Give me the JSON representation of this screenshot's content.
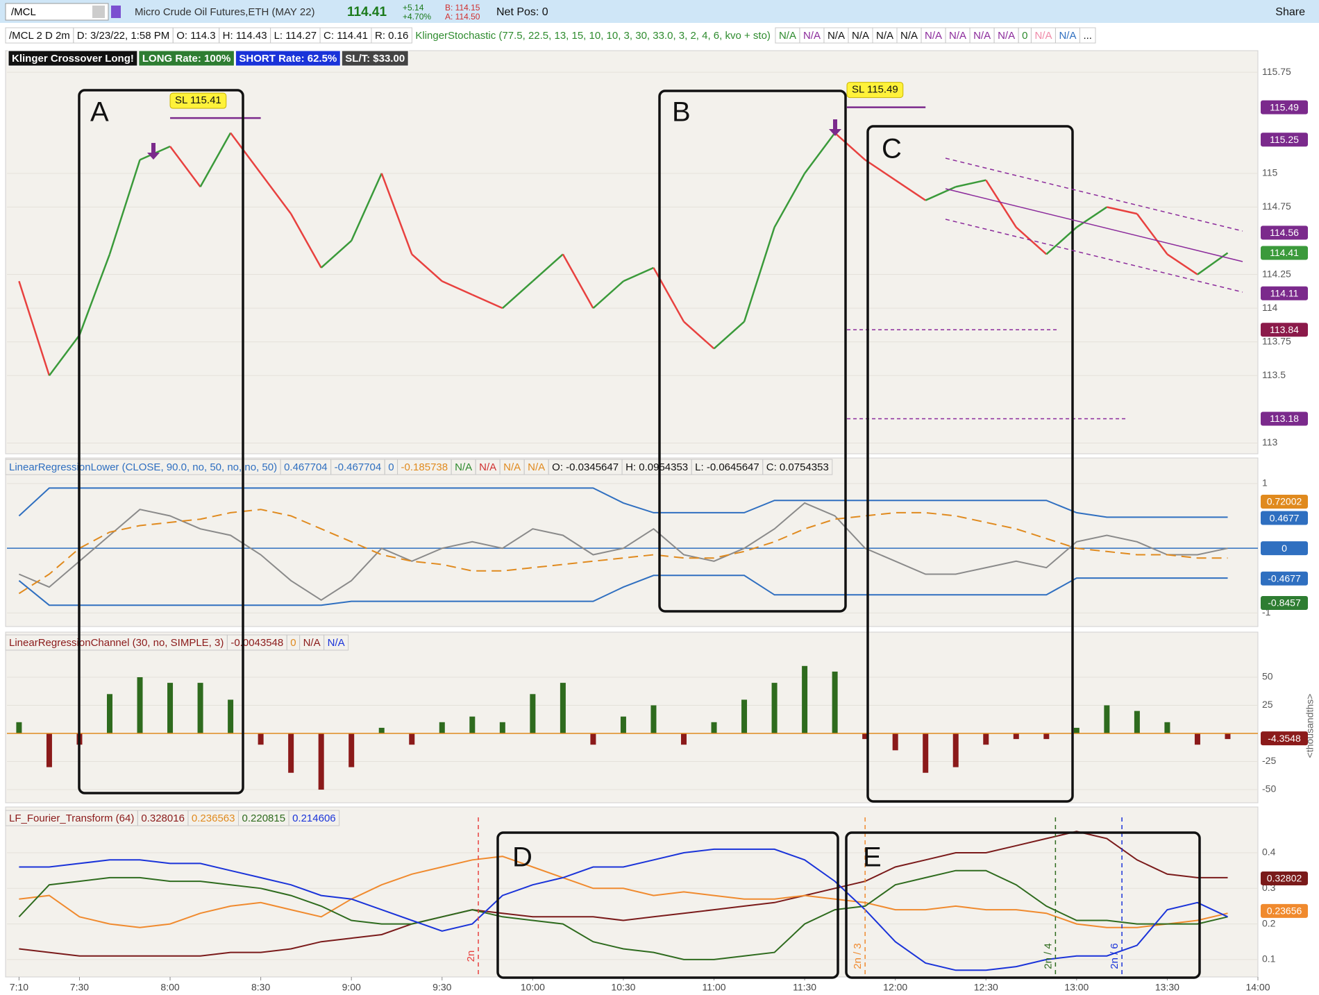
{
  "toolbar": {
    "symbol": "/MCL",
    "description": "Micro Crude Oil Futures,ETH (MAY 22)",
    "last": "114.41",
    "change": "+5.14",
    "change_pct": "+4.70%",
    "bid": "B: 114.15",
    "ask": "A: 114.50",
    "position": "Net Pos: 0",
    "share": "Share"
  },
  "info_row": {
    "items": [
      "/MCL 2 D 2m",
      "D: 3/23/22, 1:58 PM",
      "O: 114.3",
      "H: 114.43",
      "L: 114.27",
      "C: 114.41",
      "R: 0.16"
    ],
    "study": {
      "text": "KlingerStochastic (77.5, 22.5, 13, 15, 10, 10, 3, 30, 33.0, 3, 2, 4, 6, kvo + sto)",
      "color": "#2e8b2e"
    },
    "values": [
      {
        "text": "N/A",
        "color": "#2e8b2e"
      },
      {
        "text": "N/A",
        "color": "#8b2a9b"
      },
      {
        "text": "N/A",
        "color": "#111111"
      },
      {
        "text": "N/A",
        "color": "#111111"
      },
      {
        "text": "N/A",
        "color": "#111111"
      },
      {
        "text": "N/A",
        "color": "#111111"
      },
      {
        "text": "N/A",
        "color": "#8b2a9b"
      },
      {
        "text": "N/A",
        "color": "#8b2a9b"
      },
      {
        "text": "N/A",
        "color": "#8b2a9b"
      },
      {
        "text": "N/A",
        "color": "#8b2a9b"
      },
      {
        "text": "0",
        "color": "#2e8b2e"
      },
      {
        "text": "N/A",
        "color": "#f08aa8"
      },
      {
        "text": "N/A",
        "color": "#2f6fc0"
      },
      {
        "text": "...",
        "color": "#111111"
      }
    ]
  },
  "badges": [
    {
      "text": "Klinger Crossover Long!",
      "bg": "#111111"
    },
    {
      "text": "LONG Rate: 100%",
      "bg": "#2e7d32"
    },
    {
      "text": "SHORT Rate: 62.5%",
      "bg": "#1a33d9"
    },
    {
      "text": "SL/T: $33.00",
      "bg": "#444444"
    }
  ],
  "boxes": [
    "A",
    "B",
    "C",
    "D",
    "E"
  ],
  "x": [
    430,
    440,
    450,
    460,
    470,
    480,
    490,
    500,
    510,
    520,
    530,
    540,
    550,
    560,
    570,
    580,
    590,
    600,
    610,
    620,
    630,
    640,
    650,
    660,
    670,
    680,
    690,
    700,
    710,
    720,
    730,
    740,
    750,
    760,
    770,
    780,
    790,
    800,
    810,
    820,
    830
  ],
  "xlim": [
    426,
    840
  ],
  "xticks": [
    {
      "value": 430,
      "label": "7:10"
    },
    {
      "value": 450,
      "label": "7:30"
    },
    {
      "value": 480,
      "label": "8:00"
    },
    {
      "value": 510,
      "label": "8:30"
    },
    {
      "value": 540,
      "label": "9:00"
    },
    {
      "value": 570,
      "label": "9:30"
    },
    {
      "value": 600,
      "label": "10:00"
    },
    {
      "value": 630,
      "label": "10:30"
    },
    {
      "value": 660,
      "label": "11:00"
    },
    {
      "value": 690,
      "label": "11:30"
    },
    {
      "value": 720,
      "label": "12:00"
    },
    {
      "value": 750,
      "label": "12:30"
    },
    {
      "value": 780,
      "label": "13:00"
    },
    {
      "value": 810,
      "label": "13:30"
    },
    {
      "value": 840,
      "label": "14:00"
    }
  ],
  "panels": [
    {
      "type": "price",
      "ylim": [
        112.92,
        115.91
      ],
      "yticks": [
        115.75,
        115,
        114.75,
        114.25,
        114,
        113.75,
        113.5,
        113
      ],
      "series": [
        {
          "up_color": "#3a9a3a",
          "down_color": "#e8413f",
          "values": [
            114.2,
            113.5,
            113.8,
            114.4,
            115.1,
            115.2,
            114.9,
            115.3,
            115.0,
            114.7,
            114.3,
            114.5,
            115.0,
            114.4,
            114.2,
            114.1,
            114.0,
            114.2,
            114.4,
            114.0,
            114.2,
            114.3,
            113.9,
            113.7,
            113.9,
            114.6,
            115.0,
            115.3,
            115.1,
            114.95,
            114.8,
            114.9,
            114.95,
            114.6,
            114.4,
            114.6,
            114.75,
            114.7,
            114.4,
            114.25,
            114.41
          ]
        }
      ],
      "sl": [
        {
          "label": "SL 115.41",
          "value": 115.41,
          "from": 480,
          "to": 510
        },
        {
          "label": "SL 115.49",
          "value": 115.49,
          "from": 704,
          "to": 730
        }
      ],
      "tags": [
        {
          "value": 115.49,
          "color": "#7b2a8c"
        },
        {
          "value": 115.25,
          "color": "#7b2a8c"
        },
        {
          "value": 114.56,
          "color": "#7b2a8c"
        },
        {
          "value": 114.41,
          "color": "#3b9a3b"
        },
        {
          "value": 114.11,
          "color": "#7b2a8c"
        },
        {
          "value": 113.84,
          "color": "#8b1a4a"
        },
        {
          "value": 113.18,
          "color": "#7b2a8c"
        }
      ]
    },
    {
      "type": "oscillator",
      "ylim": [
        -1.21,
        1.16
      ],
      "yticks": [
        1,
        0,
        -1
      ],
      "header": [
        {
          "text": "LinearRegressionLower (CLOSE, 90.0, no, 50, no, no, 50)",
          "color": "#2f6fc0"
        },
        {
          "text": "0.467704",
          "color": "#2f6fc0"
        },
        {
          "text": "-0.467704",
          "color": "#2f6fc0"
        },
        {
          "text": "0",
          "color": "#2f6fc0"
        },
        {
          "text": "-0.185738",
          "color": "#e08a1e"
        },
        {
          "text": "N/A",
          "color": "#2e8b2e"
        },
        {
          "text": "N/A",
          "color": "#d03030"
        },
        {
          "text": "N/A",
          "color": "#e08a1e"
        },
        {
          "text": "N/A",
          "color": "#e08a1e"
        },
        {
          "text": "O: -0.0345647",
          "color": "#111111"
        },
        {
          "text": "H: 0.0954353",
          "color": "#111111"
        },
        {
          "text": "L: -0.0645647",
          "color": "#111111"
        },
        {
          "text": "C: 0.0754353",
          "color": "#111111"
        }
      ],
      "series": [
        {
          "color": "#8a8a8a",
          "values": [
            -0.4,
            -0.6,
            -0.2,
            0.2,
            0.6,
            0.5,
            0.3,
            0.2,
            -0.1,
            -0.5,
            -0.8,
            -0.5,
            0.0,
            -0.2,
            0.0,
            0.1,
            0.0,
            0.3,
            0.2,
            -0.1,
            0.0,
            0.3,
            -0.1,
            -0.2,
            0.0,
            0.3,
            0.7,
            0.5,
            0.0,
            -0.2,
            -0.4,
            -0.4,
            -0.3,
            -0.2,
            -0.3,
            0.1,
            0.2,
            0.1,
            -0.1,
            -0.1,
            0.0
          ]
        },
        {
          "color": "#2f6fc0",
          "values": [
            0.5,
            0.93,
            0.93,
            0.93,
            0.93,
            0.93,
            0.93,
            0.93,
            0.93,
            0.93,
            0.93,
            0.93,
            0.93,
            0.93,
            0.93,
            0.93,
            0.93,
            0.93,
            0.93,
            0.93,
            0.7,
            0.55,
            0.55,
            0.55,
            0.55,
            0.74,
            0.74,
            0.74,
            0.74,
            0.74,
            0.74,
            0.74,
            0.74,
            0.74,
            0.74,
            0.55,
            0.48,
            0.48,
            0.48,
            0.48,
            0.48
          ]
        },
        {
          "color": "#2f6fc0",
          "values": [
            -0.5,
            -0.88,
            -0.88,
            -0.88,
            -0.88,
            -0.88,
            -0.88,
            -0.88,
            -0.88,
            -0.88,
            -0.88,
            -0.82,
            -0.82,
            -0.82,
            -0.82,
            -0.82,
            -0.82,
            -0.82,
            -0.82,
            -0.82,
            -0.6,
            -0.42,
            -0.42,
            -0.42,
            -0.42,
            -0.72,
            -0.72,
            -0.72,
            -0.72,
            -0.72,
            -0.72,
            -0.72,
            -0.72,
            -0.72,
            -0.72,
            -0.46,
            -0.46,
            -0.46,
            -0.46,
            -0.46,
            -0.46
          ]
        },
        {
          "color": "#e08a1e",
          "dashed": true,
          "values": [
            -0.7,
            -0.4,
            0.0,
            0.25,
            0.35,
            0.4,
            0.45,
            0.55,
            0.6,
            0.5,
            0.3,
            0.1,
            -0.1,
            -0.2,
            -0.25,
            -0.35,
            -0.35,
            -0.3,
            -0.25,
            -0.2,
            -0.15,
            -0.1,
            -0.15,
            -0.15,
            -0.05,
            0.1,
            0.3,
            0.45,
            0.5,
            0.55,
            0.55,
            0.5,
            0.4,
            0.3,
            0.15,
            0.0,
            -0.05,
            -0.1,
            -0.1,
            -0.15,
            -0.15
          ]
        }
      ],
      "tags": [
        {
          "value": 0.72002,
          "color": "#e08a1e"
        },
        {
          "value": 0.4677,
          "color": "#2f6fc0"
        },
        {
          "value": 0,
          "color": "#2f6fc0"
        },
        {
          "value": -0.4677,
          "color": "#2f6fc0"
        },
        {
          "value": -0.8457,
          "color": "#2e7d32"
        }
      ]
    },
    {
      "type": "histogram",
      "ylim": [
        -61.7,
        75.3
      ],
      "yticks": [
        50,
        25,
        -25,
        -50
      ],
      "axis_label": "<thousandths>",
      "header": [
        {
          "text": "LinearRegressionChannel (30, no, SIMPLE, 3)",
          "color": "#8b1a1a"
        },
        {
          "text": "-0.0043548",
          "color": "#8b1a1a"
        },
        {
          "text": "0",
          "color": "#e08a1e"
        },
        {
          "text": "N/A",
          "color": "#8b1a1a"
        },
        {
          "text": "N/A",
          "color": "#1a33d9"
        }
      ],
      "series": [
        {
          "up_color": "#2e6b1e",
          "down_color": "#8b1a1a",
          "values": [
            10,
            -30,
            -10,
            35,
            50,
            45,
            45,
            30,
            -10,
            -35,
            -50,
            -30,
            5,
            -10,
            10,
            15,
            10,
            35,
            45,
            -10,
            15,
            25,
            -10,
            10,
            30,
            45,
            60,
            55,
            -5,
            -15,
            -35,
            -30,
            -10,
            -5,
            -5,
            5,
            25,
            20,
            10,
            -10,
            -5
          ]
        }
      ],
      "tags": [
        {
          "value": -4.3548,
          "color": "#8b1a1a"
        }
      ]
    },
    {
      "type": "lines",
      "ylim": [
        0.051,
        0.48
      ],
      "yticks": [
        0.4,
        0.3,
        0.2,
        0.1
      ],
      "header": [
        {
          "text": "LF_Fourier_Transform (64)",
          "color": "#8b1a1a"
        },
        {
          "text": "0.328016",
          "color": "#8b1a1a"
        },
        {
          "text": "0.236563",
          "color": "#e08a1e"
        },
        {
          "text": "0.220815",
          "color": "#2e6b1e"
        },
        {
          "text": "0.214606",
          "color": "#1a33d9"
        }
      ],
      "series": [
        {
          "color": "#7a1a1a",
          "values": [
            0.13,
            0.12,
            0.11,
            0.11,
            0.11,
            0.11,
            0.11,
            0.12,
            0.12,
            0.13,
            0.15,
            0.16,
            0.17,
            0.2,
            0.22,
            0.24,
            0.23,
            0.22,
            0.22,
            0.22,
            0.21,
            0.22,
            0.23,
            0.24,
            0.25,
            0.26,
            0.28,
            0.3,
            0.32,
            0.36,
            0.38,
            0.4,
            0.4,
            0.42,
            0.44,
            0.46,
            0.44,
            0.38,
            0.34,
            0.33,
            0.33
          ]
        },
        {
          "color": "#f08a2e",
          "values": [
            0.27,
            0.28,
            0.22,
            0.2,
            0.19,
            0.2,
            0.23,
            0.25,
            0.26,
            0.24,
            0.22,
            0.27,
            0.31,
            0.34,
            0.36,
            0.38,
            0.39,
            0.36,
            0.33,
            0.3,
            0.3,
            0.28,
            0.29,
            0.28,
            0.27,
            0.27,
            0.28,
            0.27,
            0.26,
            0.24,
            0.24,
            0.25,
            0.24,
            0.24,
            0.23,
            0.2,
            0.19,
            0.19,
            0.2,
            0.21,
            0.23
          ]
        },
        {
          "color": "#2e6b1e",
          "values": [
            0.22,
            0.31,
            0.32,
            0.33,
            0.33,
            0.32,
            0.32,
            0.31,
            0.3,
            0.28,
            0.25,
            0.21,
            0.2,
            0.2,
            0.22,
            0.24,
            0.22,
            0.21,
            0.2,
            0.15,
            0.13,
            0.12,
            0.1,
            0.1,
            0.11,
            0.12,
            0.2,
            0.24,
            0.25,
            0.31,
            0.33,
            0.35,
            0.35,
            0.31,
            0.25,
            0.21,
            0.21,
            0.2,
            0.2,
            0.2,
            0.22
          ]
        },
        {
          "color": "#1a33d9",
          "values": [
            0.36,
            0.36,
            0.37,
            0.38,
            0.38,
            0.37,
            0.37,
            0.35,
            0.33,
            0.31,
            0.28,
            0.27,
            0.24,
            0.21,
            0.18,
            0.2,
            0.28,
            0.31,
            0.33,
            0.36,
            0.36,
            0.38,
            0.4,
            0.41,
            0.41,
            0.41,
            0.38,
            0.32,
            0.24,
            0.15,
            0.09,
            0.07,
            0.07,
            0.08,
            0.1,
            0.11,
            0.11,
            0.14,
            0.24,
            0.26,
            0.22
          ]
        }
      ],
      "markers": [
        {
          "label": "2n",
          "x": 582,
          "color": "#e8413f"
        },
        {
          "label": "2n / 3",
          "x": 710,
          "color": "#f08a2e"
        },
        {
          "label": "2n / 4",
          "x": 773,
          "color": "#2e6b1e"
        },
        {
          "label": "2n / 6",
          "x": 795,
          "color": "#1a33d9"
        }
      ],
      "tags": [
        {
          "value": 0.32802,
          "color": "#7a1a1a"
        },
        {
          "value": 0.23656,
          "color": "#f08a2e"
        }
      ]
    }
  ]
}
